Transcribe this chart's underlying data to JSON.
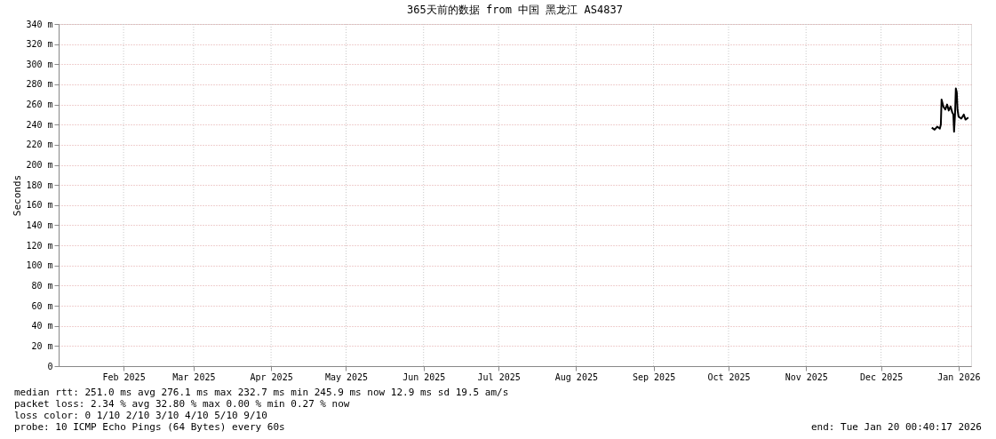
{
  "chart_data": {
    "type": "line",
    "title": "365天前的数据 from 中国 黑龙江 AS4837",
    "ylabel": "Seconds",
    "x": [
      "2026-01-04T07:00",
      "2026-01-05T10:00",
      "2026-01-06T12:00",
      "2026-01-07T12:00",
      "2026-01-07T22:00",
      "2026-01-08T05:00",
      "2026-01-08T22:00",
      "2026-01-09T17:00",
      "2026-01-10T10:00",
      "2026-01-11T02:00",
      "2026-01-11T19:00",
      "2026-01-12T12:00",
      "2026-01-12T22:00",
      "2026-01-13T05:00",
      "2026-01-13T14:00",
      "2026-01-13T22:00",
      "2026-01-14T07:00",
      "2026-01-14T14:00",
      "2026-01-15T00:00",
      "2026-01-16T02:00",
      "2026-01-17T02:00",
      "2026-01-17T19:00",
      "2026-01-18T22:00"
    ],
    "series": [
      {
        "color": "#000000",
        "values": [
          237,
          235,
          238,
          236,
          240,
          265,
          258,
          255,
          260,
          254,
          258,
          252,
          250,
          233,
          250,
          276,
          272,
          255,
          248,
          246,
          250,
          245,
          247
        ]
      }
    ],
    "xlim": [
      "2025-01-20T00:40",
      "2026-01-20T00:40"
    ],
    "xticks": [
      {
        "value": "2025-02-15",
        "label": "Feb 2025"
      },
      {
        "value": "2025-03-15",
        "label": "Mar 2025"
      },
      {
        "value": "2025-04-15",
        "label": "Apr 2025"
      },
      {
        "value": "2025-05-15",
        "label": "May 2025"
      },
      {
        "value": "2025-06-15",
        "label": "Jun 2025"
      },
      {
        "value": "2025-07-15",
        "label": "Jul 2025"
      },
      {
        "value": "2025-08-15",
        "label": "Aug 2025"
      },
      {
        "value": "2025-09-15",
        "label": "Sep 2025"
      },
      {
        "value": "2025-10-15",
        "label": "Oct 2025"
      },
      {
        "value": "2025-11-15",
        "label": "Nov 2025"
      },
      {
        "value": "2025-12-15",
        "label": "Dec 2025"
      },
      {
        "value": "2026-01-15",
        "label": "Jan 2026"
      }
    ],
    "ylim": [
      0,
      340
    ],
    "yticks": [
      0,
      {
        "value": 20,
        "label": "20 m"
      },
      {
        "value": 40,
        "label": "40 m"
      },
      {
        "value": 60,
        "label": "60 m"
      },
      {
        "value": 80,
        "label": "80 m"
      },
      {
        "value": 100,
        "label": "100 m"
      },
      {
        "value": 120,
        "label": "120 m"
      },
      {
        "value": 140,
        "label": "140 m"
      },
      {
        "value": 160,
        "label": "160 m"
      },
      {
        "value": 180,
        "label": "180 m"
      },
      {
        "value": 200,
        "label": "200 m"
      },
      {
        "value": 220,
        "label": "220 m"
      },
      {
        "value": 240,
        "label": "240 m"
      },
      {
        "value": 260,
        "label": "260 m"
      },
      {
        "value": 280,
        "label": "280 m"
      },
      {
        "value": 300,
        "label": "300 m"
      },
      {
        "value": 320,
        "label": "320 m"
      },
      {
        "value": 340,
        "label": "340 m"
      }
    ],
    "grid": true,
    "line_style": "solid",
    "marker": "none",
    "annotations": [
      "median rtt:  251.0 ms avg  276.1 ms max  232.7 ms min  245.9 ms now  12.9 ms sd  19.5   am/s",
      "packet loss: 2.34 % avg  32.80 % max  0.00 % min  0.27 % now",
      "loss color:  0 1/10 2/10 3/10 4/10 5/10 9/10",
      "probe:       10 ICMP Echo Pings (64 Bytes) every 60s",
      "end: Tue Jan 20 00:40:17 2026"
    ]
  }
}
